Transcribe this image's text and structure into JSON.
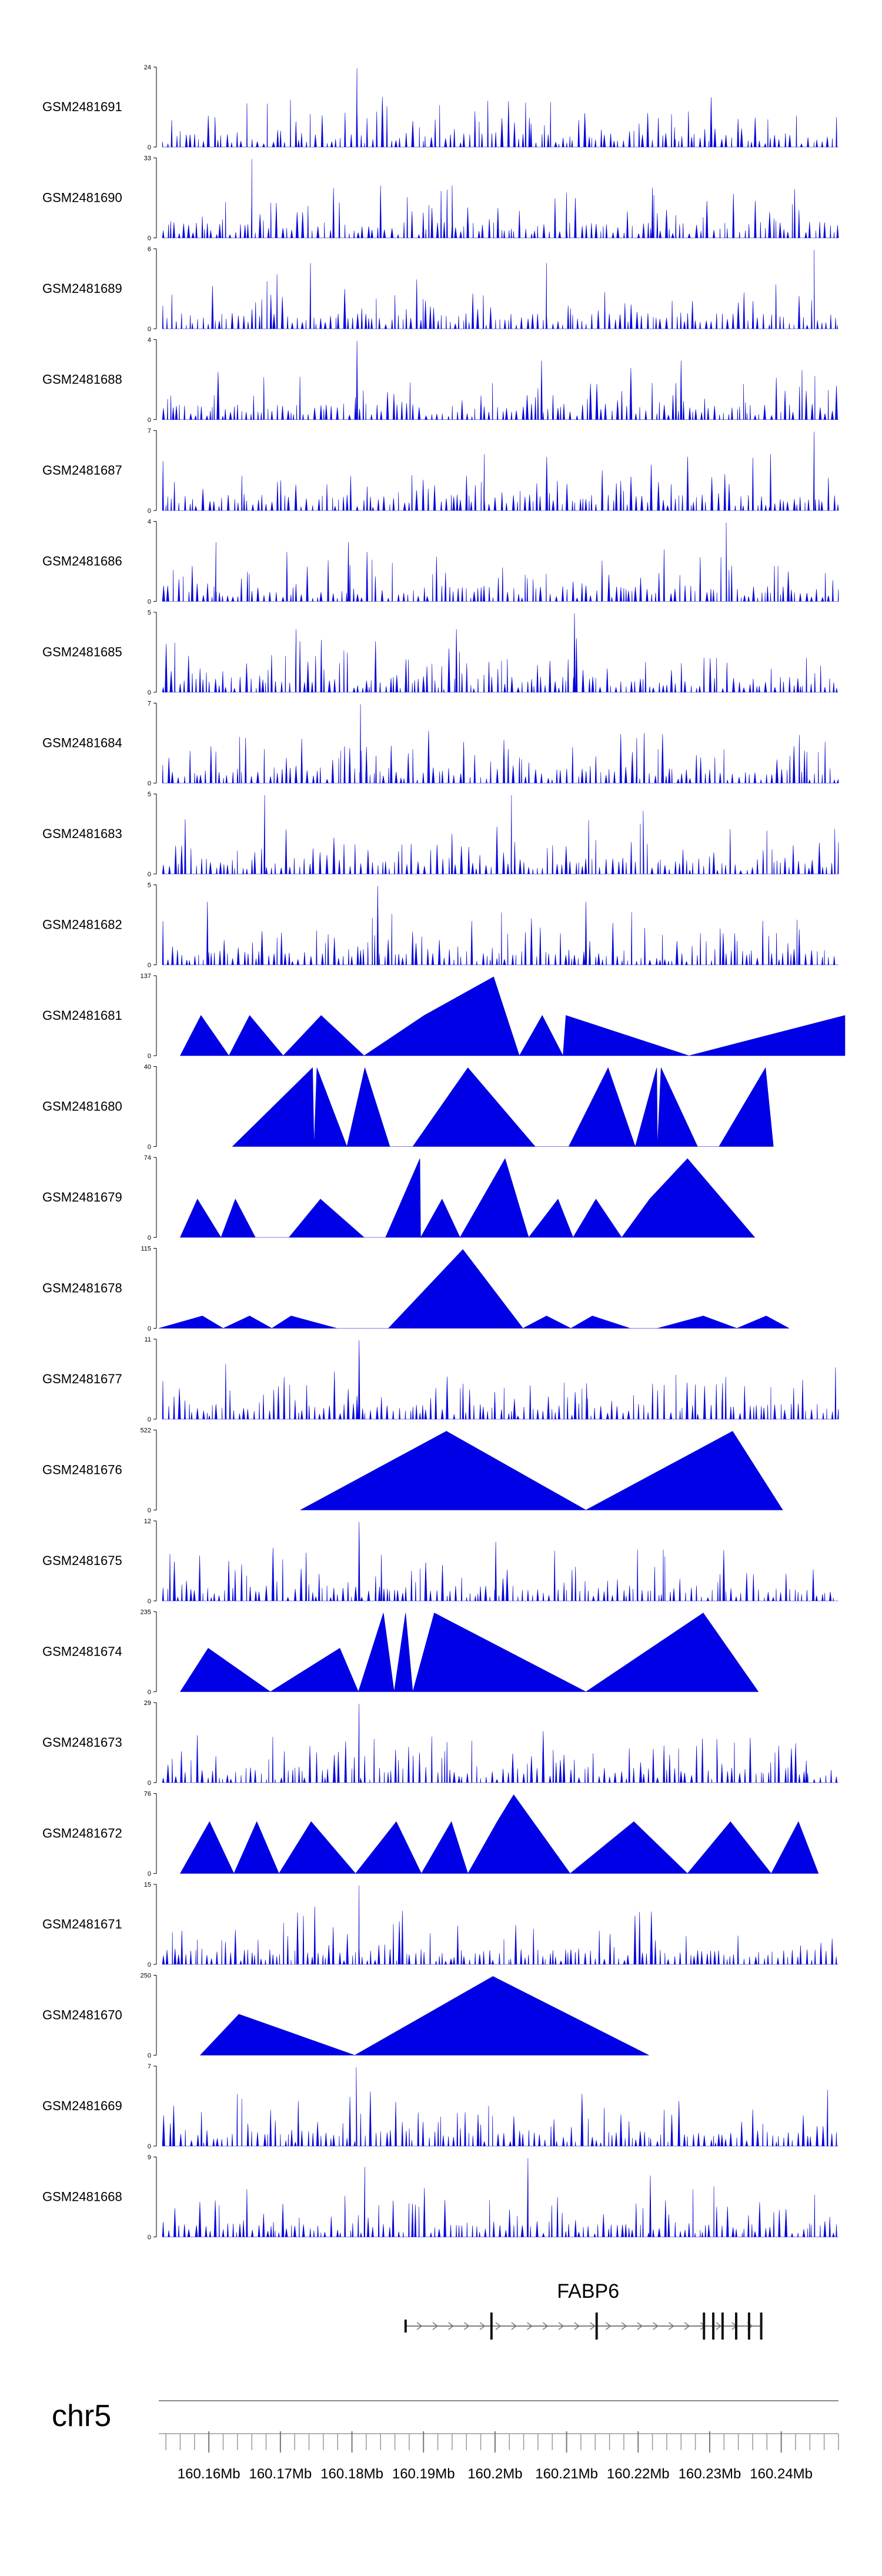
{
  "chart_data": {
    "type": "area",
    "title": "",
    "chromosome": "chr5",
    "x_range_mb": [
      160.153,
      160.248
    ],
    "x_ticks": [
      {
        "value": 160.16,
        "label": "160.16Mb"
      },
      {
        "value": 160.17,
        "label": "160.17Mb"
      },
      {
        "value": 160.18,
        "label": "160.18Mb"
      },
      {
        "value": 160.19,
        "label": "160.19Mb"
      },
      {
        "value": 160.2,
        "label": "160.2Mb"
      },
      {
        "value": 160.21,
        "label": "160.21Mb"
      },
      {
        "value": 160.22,
        "label": "160.22Mb"
      },
      {
        "value": 160.23,
        "label": "160.23Mb"
      },
      {
        "value": 160.24,
        "label": "160.24Mb"
      }
    ],
    "gene": {
      "name": "FABP6",
      "start_mb": 160.1875,
      "end_mb": 160.2372,
      "strand": "+",
      "exons_mb": [
        160.1875,
        160.1995,
        160.2142,
        160.2292,
        160.2305,
        160.2318,
        160.2337,
        160.2355,
        160.2372
      ]
    },
    "series": [
      {
        "name": "GSM2481691",
        "ymax": 24,
        "style": "dense",
        "peaks": [
          [
            160.1807,
            24
          ],
          [
            160.2048,
            9
          ],
          [
            160.2251,
            6
          ]
        ]
      },
      {
        "name": "GSM2481690",
        "ymax": 33,
        "style": "sparse",
        "peaks": [
          [
            160.166,
            33
          ],
          [
            160.184,
            22
          ],
          [
            160.222,
            21
          ],
          [
            160.194,
            22
          ],
          [
            160.21,
            19
          ]
        ]
      },
      {
        "name": "GSM2481689",
        "ymax": 6,
        "style": "dense",
        "peaks": [
          [
            160.2446,
            6
          ],
          [
            160.2072,
            5
          ],
          [
            160.1742,
            5
          ]
        ]
      },
      {
        "name": "GSM2481688",
        "ymax": 4,
        "style": "dense",
        "peaks": [
          [
            160.1807,
            4
          ],
          [
            160.226,
            3
          ],
          [
            160.2065,
            3
          ]
        ]
      },
      {
        "name": "GSM2481687",
        "ymax": 7,
        "style": "dense",
        "peaks": [
          [
            160.2446,
            7
          ],
          [
            160.2385,
            5
          ],
          [
            160.1985,
            5
          ]
        ]
      },
      {
        "name": "GSM2481686",
        "ymax": 4,
        "style": "dense",
        "peaks": [
          [
            160.2323,
            4
          ],
          [
            160.1795,
            3
          ],
          [
            160.161,
            3
          ]
        ]
      },
      {
        "name": "GSM2481685",
        "ymax": 5,
        "style": "dense",
        "peaks": [
          [
            160.2111,
            5
          ],
          [
            160.1946,
            4
          ],
          [
            160.1722,
            4
          ]
        ]
      },
      {
        "name": "GSM2481684",
        "ymax": 7,
        "style": "dense",
        "peaks": [
          [
            160.1812,
            7
          ],
          [
            160.2198,
            4
          ],
          [
            160.1885,
            3
          ]
        ]
      },
      {
        "name": "GSM2481683",
        "ymax": 5,
        "style": "dense",
        "peaks": [
          [
            160.2023,
            5
          ],
          [
            160.1678,
            5
          ],
          [
            160.2207,
            4
          ]
        ]
      },
      {
        "name": "GSM2481682",
        "ymax": 5,
        "style": "dense",
        "peaks": [
          [
            160.1836,
            5
          ],
          [
            160.2127,
            4
          ],
          [
            160.1598,
            4
          ]
        ]
      },
      {
        "name": "GSM2481681",
        "ymax": 137,
        "points": [
          [
            160.156,
            0
          ],
          [
            160.1589,
            70
          ],
          [
            160.1628,
            0
          ],
          [
            160.1657,
            70
          ],
          [
            160.1704,
            0
          ],
          [
            160.1757,
            70
          ],
          [
            160.1817,
            0
          ],
          [
            160.1901,
            70
          ],
          [
            160.1998,
            137
          ],
          [
            160.2034,
            0
          ],
          [
            160.2066,
            70
          ],
          [
            160.2095,
            0
          ],
          [
            160.2099,
            70
          ],
          [
            160.2271,
            0
          ],
          [
            160.2489,
            70
          ],
          [
            160.2489,
            0
          ]
        ]
      },
      {
        "name": "GSM2481680",
        "ymax": 40,
        "points": [
          [
            160.1633,
            0
          ],
          [
            160.1745,
            40
          ],
          [
            160.1747,
            0
          ],
          [
            160.1751,
            40
          ],
          [
            160.1793,
            0
          ],
          [
            160.1818,
            40
          ],
          [
            160.1853,
            0
          ],
          [
            160.1885,
            0
          ],
          [
            160.1962,
            40
          ],
          [
            160.2056,
            0
          ],
          [
            160.2103,
            0
          ],
          [
            160.2158,
            40
          ],
          [
            160.2196,
            0
          ],
          [
            160.2226,
            40
          ],
          [
            160.2227,
            0
          ],
          [
            160.2232,
            40
          ],
          [
            160.2283,
            0
          ],
          [
            160.2313,
            0
          ],
          [
            160.2378,
            40
          ],
          [
            160.2389,
            0
          ]
        ]
      },
      {
        "name": "GSM2481679",
        "ymax": 74,
        "points": [
          [
            160.156,
            0
          ],
          [
            160.1584,
            36
          ],
          [
            160.1617,
            0
          ],
          [
            160.1637,
            36
          ],
          [
            160.1665,
            0
          ],
          [
            160.1712,
            0
          ],
          [
            160.1756,
            36
          ],
          [
            160.1817,
            0
          ],
          [
            160.1847,
            0
          ],
          [
            160.1895,
            74
          ],
          [
            160.1896,
            0
          ],
          [
            160.1926,
            36
          ],
          [
            160.1951,
            0
          ],
          [
            160.2014,
            74
          ],
          [
            160.2047,
            0
          ],
          [
            160.2088,
            36
          ],
          [
            160.2109,
            0
          ],
          [
            160.2141,
            36
          ],
          [
            160.2177,
            0
          ],
          [
            160.2216,
            36
          ],
          [
            160.2269,
            74
          ],
          [
            160.2363,
            0
          ]
        ]
      },
      {
        "name": "GSM2481678",
        "ymax": 115,
        "points": [
          [
            160.153,
            0
          ],
          [
            160.1591,
            18
          ],
          [
            160.162,
            0
          ],
          [
            160.1657,
            18
          ],
          [
            160.1688,
            0
          ],
          [
            160.1715,
            18
          ],
          [
            160.1779,
            0
          ],
          [
            160.1851,
            0
          ],
          [
            160.1955,
            115
          ],
          [
            160.2039,
            0
          ],
          [
            160.2072,
            18
          ],
          [
            160.2106,
            0
          ],
          [
            160.2136,
            18
          ],
          [
            160.2189,
            0
          ],
          [
            160.2227,
            0
          ],
          [
            160.2291,
            18
          ],
          [
            160.2338,
            0
          ],
          [
            160.2379,
            18
          ],
          [
            160.2411,
            0
          ]
        ]
      },
      {
        "name": "GSM2481677",
        "ymax": 11,
        "style": "dense",
        "peaks": [
          [
            160.181,
            11
          ],
          [
            160.2128,
            5
          ],
          [
            160.2318,
            5
          ]
        ]
      },
      {
        "name": "GSM2481676",
        "ymax": 522,
        "points": [
          [
            160.1728,
            0
          ],
          [
            160.1932,
            522
          ],
          [
            160.2127,
            0
          ],
          [
            160.2332,
            522
          ],
          [
            160.2402,
            0
          ]
        ]
      },
      {
        "name": "GSM2481675",
        "ymax": 12,
        "style": "dense",
        "peaks": [
          [
            160.181,
            12
          ],
          [
            160.2001,
            9
          ],
          [
            160.1841,
            7
          ]
        ]
      },
      {
        "name": "GSM2481674",
        "ymax": 235,
        "points": [
          [
            160.156,
            0
          ],
          [
            160.1599,
            130
          ],
          [
            160.1686,
            0
          ],
          [
            160.1783,
            130
          ],
          [
            160.1809,
            0
          ],
          [
            160.1844,
            235
          ],
          [
            160.1859,
            0
          ],
          [
            160.1875,
            235
          ],
          [
            160.1885,
            0
          ],
          [
            160.1915,
            235
          ],
          [
            160.2127,
            0
          ],
          [
            160.2291,
            235
          ],
          [
            160.2368,
            0
          ]
        ]
      },
      {
        "name": "GSM2481673",
        "ymax": 29,
        "style": "dense",
        "peaks": [
          [
            160.181,
            29
          ],
          [
            160.231,
            16
          ],
          [
            160.2435,
            8
          ]
        ]
      },
      {
        "name": "GSM2481672",
        "ymax": 76,
        "points": [
          [
            160.156,
            0
          ],
          [
            160.1601,
            50
          ],
          [
            160.1635,
            0
          ],
          [
            160.1667,
            50
          ],
          [
            160.1698,
            0
          ],
          [
            160.1743,
            50
          ],
          [
            160.1805,
            0
          ],
          [
            160.1862,
            50
          ],
          [
            160.1897,
            0
          ],
          [
            160.1939,
            50
          ],
          [
            160.1962,
            0
          ],
          [
            160.2003,
            50
          ],
          [
            160.2026,
            76
          ],
          [
            160.2105,
            0
          ],
          [
            160.2194,
            50
          ],
          [
            160.2269,
            0
          ],
          [
            160.2329,
            50
          ],
          [
            160.2386,
            0
          ],
          [
            160.2424,
            50
          ],
          [
            160.2452,
            0
          ]
        ]
      },
      {
        "name": "GSM2481671",
        "ymax": 15,
        "style": "dense",
        "peaks": [
          [
            160.181,
            15
          ],
          [
            160.1748,
            11
          ],
          [
            160.2202,
            10
          ]
        ]
      },
      {
        "name": "GSM2481670",
        "ymax": 250,
        "points": [
          [
            160.1588,
            0
          ],
          [
            160.1642,
            130
          ],
          [
            160.1804,
            0
          ],
          [
            160.1997,
            250
          ],
          [
            160.2215,
            0
          ]
        ]
      },
      {
        "name": "GSM2481669",
        "ymax": 7,
        "style": "dense",
        "peaks": [
          [
            160.1806,
            7
          ],
          [
            160.2465,
            5
          ],
          [
            160.1725,
            4
          ]
        ]
      },
      {
        "name": "GSM2481668",
        "ymax": 9,
        "style": "dense",
        "peaks": [
          [
            160.2046,
            9
          ],
          [
            160.1818,
            8
          ],
          [
            160.2217,
            7
          ]
        ]
      }
    ]
  }
}
